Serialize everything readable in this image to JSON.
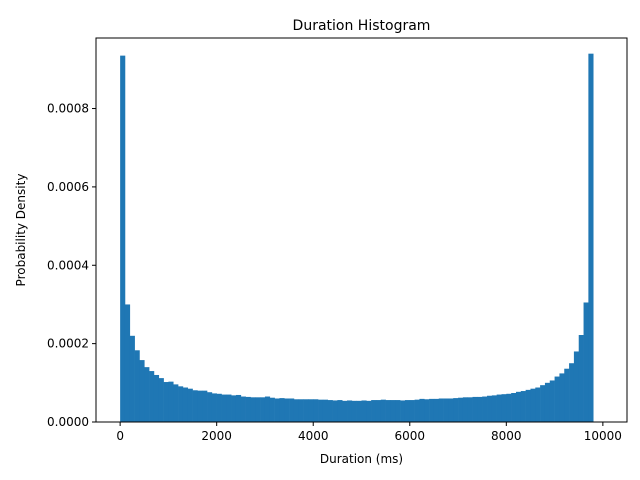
{
  "chart_data": {
    "type": "bar",
    "title": "Duration Histogram",
    "xlabel": "Duration (ms)",
    "ylabel": "Probability Density",
    "xlim": [
      -500,
      10500
    ],
    "ylim": [
      0,
      0.00098
    ],
    "bar_color": "#1f77b4",
    "grid": false,
    "x_ticks": [
      {
        "value": 0,
        "label": "0"
      },
      {
        "value": 2000,
        "label": "2000"
      },
      {
        "value": 4000,
        "label": "4000"
      },
      {
        "value": 6000,
        "label": "6000"
      },
      {
        "value": 8000,
        "label": "8000"
      },
      {
        "value": 10000,
        "label": "10000"
      }
    ],
    "y_ticks": [
      {
        "value": 0,
        "label": "0.0000"
      },
      {
        "value": 0.0002,
        "label": "0.0002"
      },
      {
        "value": 0.0004,
        "label": "0.0004"
      },
      {
        "value": 0.0006,
        "label": "0.0006"
      },
      {
        "value": 0.0008,
        "label": "0.0008"
      }
    ],
    "bin_start": 0,
    "bin_width": 100,
    "values": [
      0.000935,
      0.0003,
      0.00022,
      0.000183,
      0.000158,
      0.00014,
      0.00013,
      0.00012,
      0.000112,
      0.000102,
      0.000103,
      9.6e-05,
      9.1e-05,
      8.8e-05,
      8.5e-05,
      8.1e-05,
      8e-05,
      8e-05,
      7.6e-05,
      7.3e-05,
      7.2e-05,
      7e-05,
      7e-05,
      6.8e-05,
      6.9e-05,
      6.5e-05,
      6.4e-05,
      6.3e-05,
      6.3e-05,
      6.3e-05,
      6.5e-05,
      6.2e-05,
      6e-05,
      6.1e-05,
      6e-05,
      6e-05,
      5.8e-05,
      5.8e-05,
      5.8e-05,
      5.8e-05,
      5.8e-05,
      5.7e-05,
      5.7e-05,
      5.6e-05,
      5.5e-05,
      5.6e-05,
      5.4e-05,
      5.5e-05,
      5.4e-05,
      5.4e-05,
      5.5e-05,
      5.4e-05,
      5.6e-05,
      5.6e-05,
      5.7e-05,
      5.6e-05,
      5.6e-05,
      5.6e-05,
      5.5e-05,
      5.6e-05,
      5.6e-05,
      5.7e-05,
      5.9e-05,
      5.8e-05,
      5.9e-05,
      5.9e-05,
      6e-05,
      6e-05,
      6e-05,
      6.1e-05,
      6.2e-05,
      6.3e-05,
      6.3e-05,
      6.4e-05,
      6.4e-05,
      6.5e-05,
      6.7e-05,
      6.8e-05,
      7e-05,
      7.1e-05,
      7.2e-05,
      7.4e-05,
      7.7e-05,
      7.9e-05,
      8.2e-05,
      8.5e-05,
      8.8e-05,
      9.4e-05,
      0.0001,
      0.000106,
      0.000116,
      0.000124,
      0.000136,
      0.00015,
      0.00018,
      0.000222,
      0.000305,
      0.00094
    ]
  }
}
